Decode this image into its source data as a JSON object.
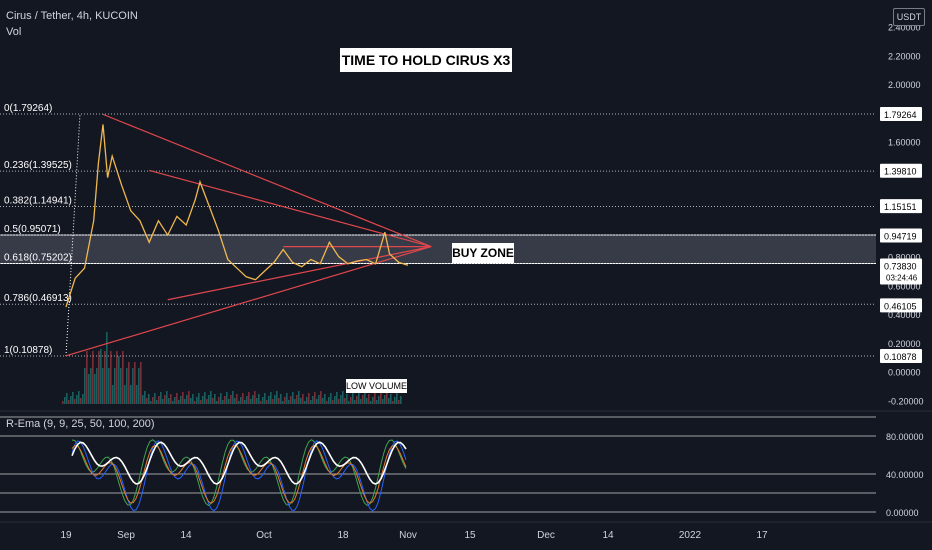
{
  "header": {
    "symbol_line": "Cirus / Tether, 4h, KUCOIN",
    "vol_label": "Vol",
    "currency_badge": "USDT",
    "indicator_label": "R-Ema (9, 9, 25, 50, 100, 200)"
  },
  "annotations": {
    "title": "TIME TO HOLD CIRUS X3",
    "buy_zone": "BUY ZONE",
    "low_volume": "LOW VOLUME"
  },
  "colors": {
    "background": "#131722",
    "price_line": "#f0b84f",
    "trendline": "#e0474c",
    "zone_fill": "#7a7f8e",
    "grid_dotted": "#b0b3bb",
    "oscillator_main": "#ffffff",
    "oscillator_green": "#3fa34d",
    "oscillator_blue": "#2962ff",
    "oscillator_orange": "#e07b2c",
    "oscillator_red": "#e0474c"
  },
  "chart_data": {
    "type": "line",
    "title": "TIME TO HOLD CIRUS X3",
    "x_axis_ticks": [
      "19",
      "Sep",
      "14",
      "Oct",
      "18",
      "Nov",
      "15",
      "Dec",
      "14",
      "2022",
      "17"
    ],
    "price_axis_ticks": [
      "2.40000",
      "2.20000",
      "2.00000",
      "1.60000",
      "0.80000",
      "0.60000",
      "0.40000",
      "0.20000",
      "0.00000",
      "-0.20000"
    ],
    "price_axis_tags": [
      {
        "label": "1.79264",
        "value": 1.79264
      },
      {
        "label": "1.39810",
        "value": 1.3981
      },
      {
        "label": "1.15151",
        "value": 1.15151
      },
      {
        "label": "0.94719",
        "value": 0.94719
      },
      {
        "label": "0.73830",
        "value": 0.7383,
        "sub": "03:24:46"
      },
      {
        "label": "0.46105",
        "value": 0.46105
      },
      {
        "label": "0.10878",
        "value": 0.10878
      }
    ],
    "fib_levels": [
      {
        "label": "0(1.79264)",
        "value": 1.79264
      },
      {
        "label": "0.236(1.39525)",
        "value": 1.39525
      },
      {
        "label": "0.382(1.14941)",
        "value": 1.14941
      },
      {
        "label": "0.5(0.95071)",
        "value": 0.95071
      },
      {
        "label": "0.618(0.75202)",
        "value": 0.75202
      },
      {
        "label": "0.786(0.46913)",
        "value": 0.46913
      },
      {
        "label": "1(0.10878)",
        "value": 0.10878
      }
    ],
    "buy_zone_range": [
      0.75202,
      0.95071
    ],
    "price_series": [
      {
        "date": "2021-08-19",
        "value": 0.45
      },
      {
        "date": "2021-08-21",
        "value": 0.65
      },
      {
        "date": "2021-08-23",
        "value": 0.72
      },
      {
        "date": "2021-08-25",
        "value": 1.05
      },
      {
        "date": "2021-08-26",
        "value": 1.45
      },
      {
        "date": "2021-08-27",
        "value": 1.72
      },
      {
        "date": "2021-08-28",
        "value": 1.35
      },
      {
        "date": "2021-08-29",
        "value": 1.5
      },
      {
        "date": "2021-08-31",
        "value": 1.3
      },
      {
        "date": "2021-09-02",
        "value": 1.12
      },
      {
        "date": "2021-09-04",
        "value": 1.05
      },
      {
        "date": "2021-09-06",
        "value": 0.9
      },
      {
        "date": "2021-09-08",
        "value": 1.05
      },
      {
        "date": "2021-09-10",
        "value": 0.95
      },
      {
        "date": "2021-09-12",
        "value": 1.08
      },
      {
        "date": "2021-09-14",
        "value": 1.02
      },
      {
        "date": "2021-09-16",
        "value": 1.2
      },
      {
        "date": "2021-09-17",
        "value": 1.32
      },
      {
        "date": "2021-09-19",
        "value": 1.15
      },
      {
        "date": "2021-09-21",
        "value": 0.98
      },
      {
        "date": "2021-09-23",
        "value": 0.78
      },
      {
        "date": "2021-09-25",
        "value": 0.72
      },
      {
        "date": "2021-09-27",
        "value": 0.66
      },
      {
        "date": "2021-09-29",
        "value": 0.64
      },
      {
        "date": "2021-10-01",
        "value": 0.7
      },
      {
        "date": "2021-10-03",
        "value": 0.76
      },
      {
        "date": "2021-10-05",
        "value": 0.85
      },
      {
        "date": "2021-10-07",
        "value": 0.76
      },
      {
        "date": "2021-10-09",
        "value": 0.73
      },
      {
        "date": "2021-10-11",
        "value": 0.78
      },
      {
        "date": "2021-10-13",
        "value": 0.75
      },
      {
        "date": "2021-10-15",
        "value": 0.9
      },
      {
        "date": "2021-10-17",
        "value": 0.8
      },
      {
        "date": "2021-10-19",
        "value": 0.75
      },
      {
        "date": "2021-10-21",
        "value": 0.77
      },
      {
        "date": "2021-10-23",
        "value": 0.78
      },
      {
        "date": "2021-10-25",
        "value": 0.75
      },
      {
        "date": "2021-10-27",
        "value": 0.97
      },
      {
        "date": "2021-10-28",
        "value": 0.82
      },
      {
        "date": "2021-10-30",
        "value": 0.76
      },
      {
        "date": "2021-11-01",
        "value": 0.74
      }
    ],
    "trendlines": [
      {
        "from": {
          "date": "2021-08-19",
          "value": 0.11
        },
        "to": {
          "date": "2021-11-06",
          "value": 0.87
        }
      },
      {
        "from": {
          "date": "2021-08-27",
          "value": 1.79
        },
        "to": {
          "date": "2021-11-06",
          "value": 0.87
        }
      },
      {
        "from": {
          "date": "2021-09-06",
          "value": 1.4
        },
        "to": {
          "date": "2021-11-06",
          "value": 0.87
        }
      },
      {
        "from": {
          "date": "2021-09-10",
          "value": 0.5
        },
        "to": {
          "date": "2021-11-06",
          "value": 0.87
        }
      },
      {
        "from": {
          "date": "2021-10-05",
          "value": 0.87
        },
        "to": {
          "date": "2021-11-06",
          "value": 0.87
        }
      }
    ],
    "oscillator_ticks": [
      "80.00000",
      "40.00000",
      "0.00000"
    ],
    "oscillator_ylim": [
      -5,
      100
    ],
    "grid": false,
    "legend": "none"
  }
}
